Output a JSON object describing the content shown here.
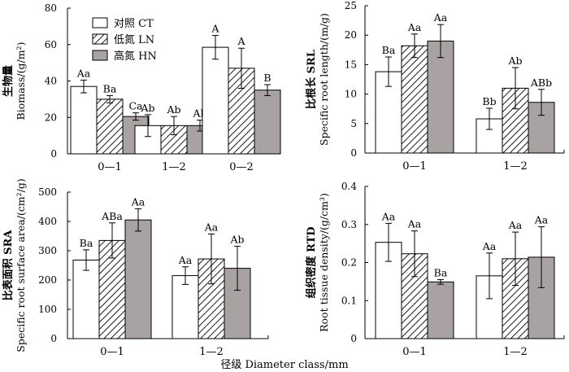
{
  "colors": {
    "CT": "#ffffff",
    "LN": "hatch",
    "HN": "#a8a2a2",
    "stroke": "#000000"
  },
  "legend": {
    "items": [
      "对照 CT",
      "低氮 LN",
      "高氮 HN"
    ]
  },
  "xlabel": "径级  Diameter class/mm",
  "chart_data": [
    {
      "id": "biomass",
      "type": "bar",
      "ylabel_cn": "生物量",
      "ylabel_en": "Biomass/(g/m²)",
      "ylim": [
        0,
        80
      ],
      "yticks": [
        "0",
        "20",
        "40",
        "60",
        "80"
      ],
      "categories": [
        "0—1",
        "1—2",
        "0—2"
      ],
      "series": [
        {
          "name": "对照 CT",
          "values": [
            37,
            15.5,
            58.5
          ],
          "errors": [
            3.5,
            6,
            6.5
          ],
          "labels": [
            "Aa",
            "Ab",
            "A"
          ]
        },
        {
          "name": "低氮 LN",
          "values": [
            30,
            15.5,
            47
          ],
          "errors": [
            2,
            5,
            11
          ],
          "labels": [
            "Ba",
            "Ab",
            "A"
          ]
        },
        {
          "name": "高氮 HN",
          "values": [
            20.5,
            15.5,
            35
          ],
          "errors": [
            2,
            3,
            3
          ],
          "labels": [
            "Ca",
            "Ab",
            "B"
          ]
        }
      ]
    },
    {
      "id": "srl",
      "type": "bar",
      "ylabel_cn": "比根长 SRL",
      "ylabel_en": "Specific root length/(m/g)",
      "ylim": [
        0,
        25
      ],
      "yticks": [
        "0",
        "5",
        "10",
        "15",
        "20",
        "25"
      ],
      "categories": [
        "0—1",
        "1—2"
      ],
      "series": [
        {
          "name": "对照 CT",
          "values": [
            13.8,
            5.8
          ],
          "errors": [
            2.5,
            1.8
          ],
          "labels": [
            "Ba",
            "Bb"
          ]
        },
        {
          "name": "低氮 LN",
          "values": [
            18.2,
            11
          ],
          "errors": [
            2,
            3.5
          ],
          "labels": [
            "Aa",
            "Ab"
          ]
        },
        {
          "name": "高氮 HN",
          "values": [
            19,
            8.6
          ],
          "errors": [
            2.8,
            2.2
          ],
          "labels": [
            "Aa",
            "ABb"
          ]
        }
      ]
    },
    {
      "id": "sra",
      "type": "bar",
      "ylabel_cn": "比表面积 SRA",
      "ylabel_en": "Specific root surface area/(cm²/g)",
      "ylim": [
        0,
        500
      ],
      "yticks": [
        "0",
        "100",
        "200",
        "300",
        "400",
        "500"
      ],
      "categories": [
        "0—1",
        "1—2"
      ],
      "series": [
        {
          "name": "对照 CT",
          "values": [
            268,
            215
          ],
          "errors": [
            35,
            30
          ],
          "labels": [
            "Ba",
            "Aa"
          ]
        },
        {
          "name": "低氮 LN",
          "values": [
            335,
            272
          ],
          "errors": [
            60,
            85
          ],
          "labels": [
            "ABa",
            "Aa"
          ]
        },
        {
          "name": "高氮 HN",
          "values": [
            405,
            240
          ],
          "errors": [
            38,
            75
          ],
          "labels": [
            "Aa",
            "Ab"
          ]
        }
      ]
    },
    {
      "id": "rtd",
      "type": "bar",
      "ylabel_cn": "组织密度 RTD",
      "ylabel_en": "Root tissue density/(g/cm³)",
      "ylim": [
        0,
        0.4
      ],
      "yticks": [
        "0",
        "0.1",
        "0.2",
        "0.3",
        "0.4"
      ],
      "categories": [
        "0—1",
        "1—2"
      ],
      "series": [
        {
          "name": "对照 CT",
          "values": [
            0.253,
            0.165
          ],
          "errors": [
            0.05,
            0.06
          ],
          "labels": [
            "Aa",
            "Aa"
          ]
        },
        {
          "name": "低氮 LN",
          "values": [
            0.223,
            0.21
          ],
          "errors": [
            0.06,
            0.07
          ],
          "labels": [
            "Aa",
            "Aa"
          ]
        },
        {
          "name": "高氮 HN",
          "values": [
            0.149,
            0.214
          ],
          "errors": [
            0.006,
            0.08
          ],
          "labels": [
            "Ba",
            "Aa"
          ]
        }
      ]
    }
  ]
}
